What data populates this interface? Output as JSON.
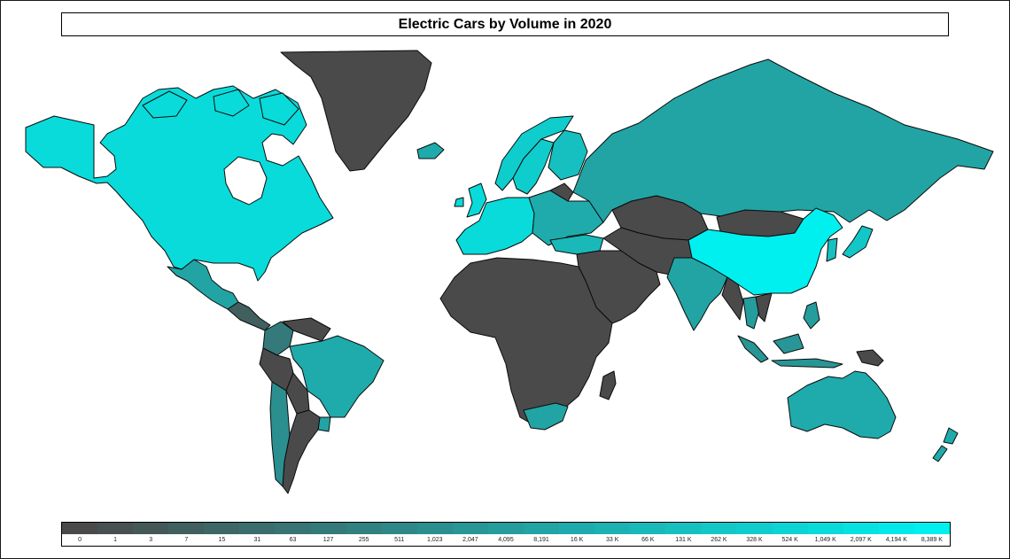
{
  "title": "Electric Cars by Volume in 2020",
  "colors": {
    "lowest": "#4a4a4a",
    "highest": "#00f0f0",
    "ocean": "#ffffff",
    "border": "#0b0b0b"
  },
  "legend": {
    "labels": [
      "0",
      "1",
      "3",
      "7",
      "15",
      "31",
      "63",
      "127",
      "255",
      "511",
      "1,023",
      "2,047",
      "4,095",
      "8,191",
      "16 K",
      "33 K",
      "66 K",
      "131 K",
      "262 K",
      "328 K",
      "524 K",
      "1,049 K",
      "2,097 K",
      "4,194 K",
      "8,389 K"
    ]
  },
  "regions": [
    {
      "name": "North America",
      "level": 21
    },
    {
      "name": "Mexico",
      "level": 13
    },
    {
      "name": "Central America",
      "level": 3
    },
    {
      "name": "Colombia",
      "level": 7
    },
    {
      "name": "Venezuela",
      "level": 0
    },
    {
      "name": "Brazil",
      "level": 14
    },
    {
      "name": "Peru",
      "level": 0
    },
    {
      "name": "Bolivia",
      "level": 0
    },
    {
      "name": "Argentina",
      "level": 0
    },
    {
      "name": "Chile",
      "level": 10
    },
    {
      "name": "Uruguay",
      "level": 13
    },
    {
      "name": "Greenland",
      "level": 0
    },
    {
      "name": "Iceland",
      "level": 14
    },
    {
      "name": "Norway",
      "level": 19
    },
    {
      "name": "Sweden",
      "level": 19
    },
    {
      "name": "Finland",
      "level": 17
    },
    {
      "name": "Western Europe",
      "level": 21
    },
    {
      "name": "Eastern Europe",
      "level": 14
    },
    {
      "name": "Belarus",
      "level": 0
    },
    {
      "name": "Russia",
      "level": 13
    },
    {
      "name": "Kazakhstan",
      "level": 0
    },
    {
      "name": "Central Asia",
      "level": 0
    },
    {
      "name": "Turkey",
      "level": 16
    },
    {
      "name": "Middle East",
      "level": 0
    },
    {
      "name": "Africa",
      "level": 0
    },
    {
      "name": "South Africa",
      "level": 13
    },
    {
      "name": "Madagascar",
      "level": 0
    },
    {
      "name": "Mongolia",
      "level": 0
    },
    {
      "name": "China",
      "level": 24
    },
    {
      "name": "Korea",
      "level": 17
    },
    {
      "name": "Japan",
      "level": 18
    },
    {
      "name": "India",
      "level": 13
    },
    {
      "name": "Myanmar",
      "level": 0
    },
    {
      "name": "Thailand",
      "level": 12
    },
    {
      "name": "Vietnam",
      "level": 0
    },
    {
      "name": "Philippines",
      "level": 12
    },
    {
      "name": "Indonesia",
      "level": 11
    },
    {
      "name": "Papua New Guinea",
      "level": 0
    },
    {
      "name": "Australia",
      "level": 14
    },
    {
      "name": "New Zealand",
      "level": 14
    }
  ]
}
